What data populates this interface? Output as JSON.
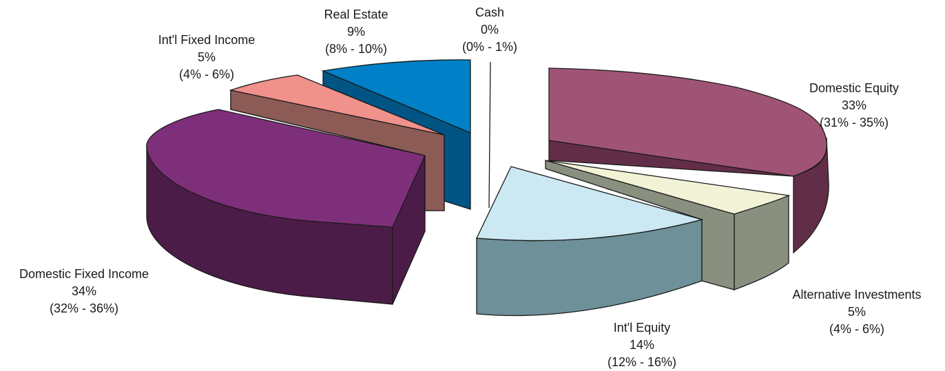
{
  "chart_data": {
    "type": "pie",
    "title": "",
    "style": "3d-exploded",
    "slices": [
      {
        "label": "Domestic Equity",
        "value": 33,
        "value_text": "33%",
        "range_text": "(31% - 35%)",
        "top_color": "#a05475",
        "side_color": "#622e47"
      },
      {
        "label": "Alternative Investments",
        "value": 5,
        "value_text": "5%",
        "range_text": "(4% - 6%)",
        "top_color": "#f2f2d6",
        "side_color": "#8a9080"
      },
      {
        "label": "Int'l Equity",
        "value": 14,
        "value_text": "14%",
        "range_text": "(12% - 16%)",
        "top_color": "#cbe8f3",
        "side_color": "#6e9098"
      },
      {
        "label": "Domestic Fixed Income",
        "value": 34,
        "value_text": "34%",
        "range_text": "(32% - 36%)",
        "top_color": "#7e2f7a",
        "side_color": "#4c1c48"
      },
      {
        "label": "Int'l Fixed Income",
        "value": 5,
        "value_text": "5%",
        "range_text": "(4% - 6%)",
        "top_color": "#f0918c",
        "side_color": "#8c5b56"
      },
      {
        "label": "Real Estate",
        "value": 9,
        "value_text": "9%",
        "range_text": "(8% - 10%)",
        "top_color": "#0080c6",
        "side_color": "#005585"
      },
      {
        "label": "Cash",
        "value": 0,
        "value_text": "0%",
        "range_text": "(0% - 1%)",
        "top_color": "#ffffff",
        "side_color": "#ffffff"
      }
    ]
  }
}
